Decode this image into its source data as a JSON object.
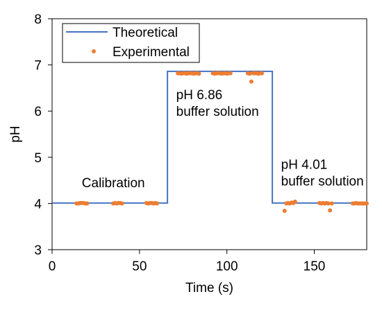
{
  "chart_data": {
    "type": "line",
    "title": "",
    "xlabel": "Time (s)",
    "ylabel": "pH",
    "xlim": [
      0,
      180
    ],
    "ylim": [
      3,
      8
    ],
    "x_ticks": [
      0,
      50,
      100,
      150
    ],
    "y_ticks": [
      3,
      4,
      5,
      6,
      7,
      8
    ],
    "grid": false,
    "legend_position": "top-left",
    "colors": {
      "theoretical": "#4472C4",
      "experimental": "#ED7D31"
    },
    "series": [
      {
        "name": "Theoretical",
        "kind": "line",
        "x": [
          0,
          66,
          66,
          126,
          126,
          180
        ],
        "y": [
          4.01,
          4.01,
          6.86,
          6.86,
          4.01,
          4.01
        ]
      },
      {
        "name": "Experimental",
        "kind": "scatter",
        "x": [
          14,
          15,
          16,
          17,
          18,
          19,
          20,
          35,
          36,
          37,
          38,
          39,
          40,
          54,
          55,
          56,
          57,
          58,
          59,
          60,
          72,
          73,
          74,
          75,
          76,
          77,
          78,
          79,
          80,
          81,
          82,
          83,
          84,
          92,
          93,
          94,
          95,
          96,
          97,
          98,
          99,
          100,
          101,
          102,
          112,
          113,
          114,
          115,
          116,
          117,
          118,
          119,
          120,
          133,
          134,
          135,
          136,
          137,
          138,
          139,
          153,
          154,
          155,
          156,
          157,
          158,
          159,
          160,
          172,
          173,
          174,
          175,
          176,
          177,
          178,
          179,
          180
        ],
        "y": [
          4.0,
          4.0,
          4.01,
          4.01,
          4.01,
          4.0,
          4.0,
          4.0,
          4.01,
          4.0,
          4.01,
          4.01,
          4.0,
          4.01,
          4.0,
          4.01,
          4.01,
          4.0,
          4.01,
          4.0,
          6.82,
          6.82,
          6.81,
          6.82,
          6.82,
          6.81,
          6.82,
          6.82,
          6.82,
          6.81,
          6.82,
          6.82,
          6.81,
          6.82,
          6.81,
          6.82,
          6.82,
          6.82,
          6.81,
          6.82,
          6.82,
          6.81,
          6.82,
          6.82,
          6.82,
          6.81,
          6.64,
          6.82,
          6.82,
          6.82,
          6.81,
          6.82,
          6.82,
          3.84,
          4.0,
          4.01,
          4.0,
          4.02,
          4.01,
          4.04,
          4.01,
          4.0,
          4.01,
          4.0,
          4.01,
          4.0,
          3.85,
          4.0,
          4.0,
          4.0,
          4.01,
          4.0,
          4.0,
          4.0,
          4.0,
          4.0,
          4.0
        ]
      }
    ],
    "annotations": [
      {
        "text": "Calibration",
        "x": 17,
        "y": 4.35
      },
      {
        "text": "pH 6.86",
        "x": 71,
        "y": 6.26
      },
      {
        "text": "buffer solution",
        "x": 71,
        "y": 5.9
      },
      {
        "text": "pH 4.01",
        "x": 131,
        "y": 4.75
      },
      {
        "text": "buffer solution",
        "x": 131,
        "y": 4.39
      }
    ]
  }
}
